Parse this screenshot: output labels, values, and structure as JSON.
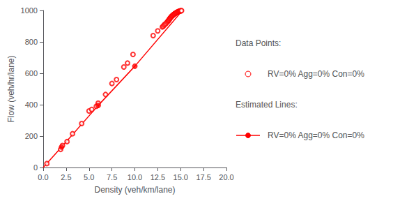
{
  "chart_data": {
    "type": "scatter",
    "xlabel": "Density (veh/km/lane)",
    "ylabel": "Flow (veh/hr/lane)",
    "xlim": [
      0.0,
      20.0
    ],
    "ylim": [
      0,
      1000
    ],
    "xticks": [
      {
        "value": 0,
        "label": "0.0"
      },
      2.5,
      {
        "value": 5,
        "label": "5.0"
      },
      7.5,
      {
        "value": 10,
        "label": "10.0"
      },
      12.5,
      {
        "value": 15,
        "label": "15.0"
      },
      17.5,
      {
        "value": 20,
        "label": "20.0"
      }
    ],
    "yticks": [
      0,
      200,
      400,
      600,
      800,
      1000
    ],
    "grid": false,
    "series": [
      {
        "name": "RV=0% Agg=0% Con=0%",
        "legend_title": "Data Points:",
        "type": "scatter",
        "marker": "circle_open",
        "color": "#ff0000",
        "x": [
          0.4,
          1.9,
          2.1,
          2.6,
          3.2,
          4.2,
          5.0,
          5.3,
          5.8,
          6.0,
          6.8,
          7.5,
          8.0,
          8.8,
          9.2,
          9.8,
          12.0,
          12.5,
          13.0,
          13.1,
          13.2,
          13.3,
          13.4,
          13.5,
          13.6,
          13.65,
          13.7,
          13.75,
          13.8,
          13.85,
          13.9,
          13.95,
          14.0,
          14.05,
          14.1,
          14.15,
          14.2,
          14.25,
          14.3,
          14.35,
          14.4,
          14.45,
          14.5,
          14.55,
          14.6,
          14.65,
          14.7,
          14.75,
          14.8,
          14.85,
          14.9,
          14.95,
          15.0,
          15.05,
          15.1
        ],
        "values": [
          25,
          115,
          140,
          165,
          215,
          280,
          360,
          370,
          390,
          410,
          465,
          535,
          560,
          640,
          665,
          720,
          840,
          870,
          895,
          900,
          908,
          912,
          918,
          925,
          930,
          935,
          938,
          942,
          948,
          950,
          955,
          958,
          962,
          965,
          967,
          970,
          972,
          975,
          977,
          979,
          981,
          983,
          985,
          987,
          988,
          990,
          991,
          993,
          994,
          995,
          996,
          997,
          998,
          999,
          999
        ]
      },
      {
        "name": "RV=0% Agg=0% Con=0%",
        "legend_title": "Estimated Lines:",
        "type": "line",
        "color": "#ff0000",
        "x": [
          0.0,
          2.0,
          6.0,
          10.0,
          15.2
        ],
        "values": [
          0,
          130,
          395,
          645,
          1000
        ]
      },
      {
        "type": "scatter",
        "marker": "circle",
        "color": "#ff0000",
        "x": [
          2.0,
          6.0,
          10.0
        ],
        "values": [
          130,
          395,
          645
        ]
      }
    ]
  }
}
